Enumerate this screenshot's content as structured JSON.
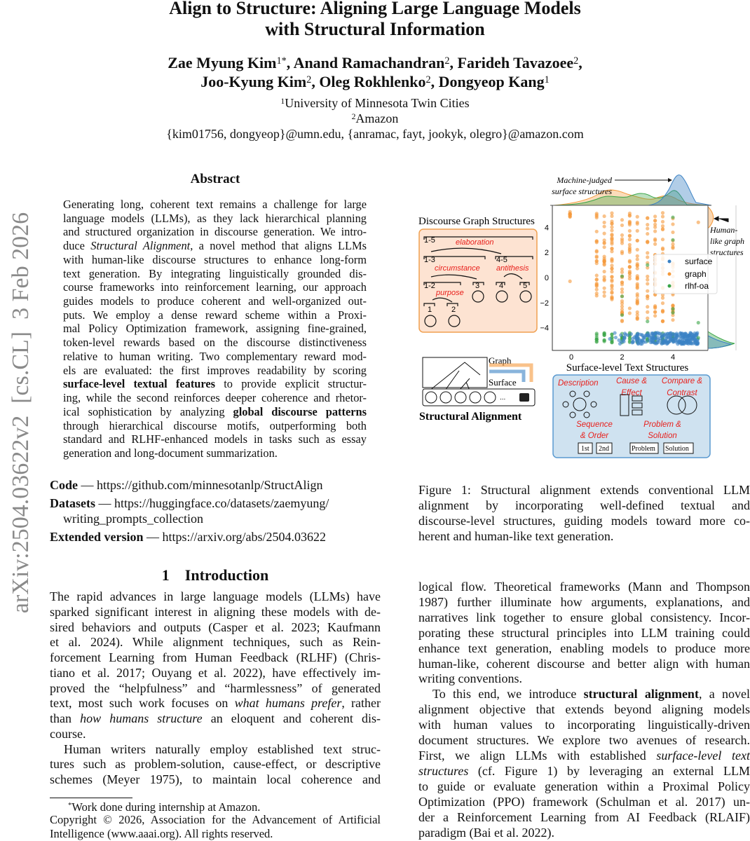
{
  "sidebar_stamp": "arXiv:2504.03622v2  [cs.CL]  3 Feb 2026",
  "title": {
    "line1": "Align to Structure: Aligning Large Language Models",
    "line2": "with Structural Information"
  },
  "authors": {
    "line1": [
      [
        "Zae Myung Kim",
        "1*"
      ],
      [
        "Anand Ramachandran",
        "2"
      ],
      [
        "Farideh Tavazoee",
        "2"
      ]
    ],
    "line2": [
      [
        "Joo-Kyung Kim",
        "2"
      ],
      [
        "Oleg Rokhlenko",
        "2"
      ],
      [
        "Dongyeop Kang",
        "1"
      ]
    ]
  },
  "affiliations": [
    {
      "sup": "1",
      "text": "University of Minnesota Twin Cities"
    },
    {
      "sup": "2",
      "text": "Amazon"
    }
  ],
  "emails": "{kim01756, dongyeop}@umn.edu, {anramac, fayt, jookyk, olegro}@amazon.com",
  "abstract": {
    "heading": "Abstract",
    "lines": [
      "Generating long, coherent text remains a challenge for large",
      "language models (LLMs), as they lack hierarchical planning",
      "and structured organization in discourse generation. We intro-",
      [
        [
          "n",
          "duce "
        ],
        [
          "i",
          "Structural Alignment"
        ],
        [
          "n",
          ", a novel method that aligns LLMs"
        ]
      ],
      "with human-like discourse structures to enhance long-form",
      "text generation. By integrating linguistically grounded dis-",
      "course frameworks into reinforcement learning, our approach",
      "guides models to produce coherent and well-organized out-",
      "puts. We employ a dense reward scheme within a Proxi-",
      "mal Policy Optimization framework, assigning fine-grained,",
      "token-level rewards based on the discourse distinctiveness",
      "relative to human writing. Two complementary reward mod-",
      "els are evaluated: the first improves readability by scoring",
      [
        [
          "b",
          "surface-level textual features"
        ],
        [
          "n",
          " to provide explicit structur-"
        ]
      ],
      "ing, while the second reinforces deeper coherence and rhetor-",
      [
        [
          "n",
          "ical sophistication by analyzing "
        ],
        [
          "b",
          "global discourse patterns"
        ]
      ],
      "through hierarchical discourse motifs, outperforming both",
      "standard and RLHF-enhanced models in tasks such as essay",
      "generation and long-document summarization."
    ]
  },
  "links": {
    "code_label": "Code",
    "code_url": "https://github.com/minnesotanlp/StructAlign",
    "datasets_label": "Datasets",
    "datasets_url_1": "https://huggingface.co/datasets/zaemyung/",
    "datasets_url_2": "writing_prompts_collection",
    "extended_label": "Extended version",
    "extended_url": "https://arxiv.org/abs/2504.03622",
    "dash": " — "
  },
  "intro": {
    "heading": "1    Introduction",
    "left_lines": [
      "The rapid advances in large language models (LLMs) have",
      "sparked significant interest in aligning these models with de-",
      "sired behaviors and outputs (Casper et al. 2023; Kaufmann",
      "et al. 2024). While alignment techniques, such as Rein-",
      "forcement Learning from Human Feedback (RLHF) (Chris-",
      "tiano et al. 2017; Ouyang et al. 2022), have effectively im-",
      "proved the “helpfulness” and “harmlessness” of generated",
      [
        [
          "n",
          "text, most such work focuses on "
        ],
        [
          "i",
          "what humans prefer"
        ],
        [
          "n",
          ", rather"
        ]
      ],
      [
        [
          "n",
          "than "
        ],
        [
          "i",
          "how humans structure"
        ],
        [
          "n",
          " an eloquent and coherent dis-"
        ]
      ],
      "course.",
      "Human writers naturally employ established text struc-",
      "tures such as problem-solution, cause-effect, or descriptive",
      "schemes (Meyer 1975), to maintain local coherence and"
    ],
    "right_lines": [
      "logical flow. Theoretical frameworks (Mann and Thompson",
      "1987) further illuminate how arguments, explanations, and",
      "narratives link together to ensure global consistency. Incor-",
      "porating these structural principles into LLM training could",
      "enhance text generation, enabling models to produce more",
      "human-like, coherent discourse and better align with human",
      "writing conventions.",
      [
        [
          "n",
          "To this end, we introduce "
        ],
        [
          "b",
          "structural alignment"
        ],
        [
          "n",
          ", a novel"
        ]
      ],
      "alignment objective that extends beyond aligning models",
      "with human values to incorporating linguistically-driven",
      "document structures. We explore two avenues of research.",
      [
        [
          "n",
          "First, we align LLMs with established "
        ],
        [
          "i",
          "surface-level text"
        ]
      ],
      [
        [
          "i",
          "structures"
        ],
        [
          "n",
          " (cf. Figure 1) by leveraging an external LLM"
        ]
      ],
      "to guide or evaluate generation within a Proximal Policy",
      "Optimization (PPO) framework (Schulman et al. 2017) un-",
      "der a Reinforcement Learning from AI Feedback (RLAIF)",
      "paradigm (Bai et al. 2022)."
    ]
  },
  "footnote": {
    "mark": "*",
    "text": "Work done during internship at Amazon.",
    "copyright_1": "Copyright © 2026, Association for the Advancement of Artificial",
    "copyright_2": "Intelligence (www.aaai.org). All rights reserved."
  },
  "figure": {
    "caption_lines": [
      "Figure 1: Structural alignment extends conventional LLM",
      "alignment by incorporating well-defined textual and",
      "discourse-level structures, guiding models toward more co-",
      "herent and human-like text generation."
    ],
    "graph_panel_title": "Discourse Graph Structures",
    "graph_nodes": [
      "1-5",
      "1-3",
      "4-5",
      "1-2",
      "3",
      "4",
      "5",
      "1",
      "2"
    ],
    "graph_relations": [
      "elaboration",
      "circumstance",
      "antithesis",
      "purpose"
    ],
    "annotation_top_1": "Machine-judged",
    "annotation_top_2": "surface structures",
    "annotation_right_1": "Human-",
    "annotation_right_2": "like graph",
    "annotation_right_3": "structures",
    "pipeline_graph": "Graph",
    "pipeline_surface": "Surface",
    "pipeline_ellipsis": "...",
    "pipeline_title": "Structural Alignment",
    "surface_types": [
      "Description",
      "Cause &",
      "Effect",
      "Compare &",
      "Contrast",
      "Sequence",
      "& Order",
      "Problem &",
      "Solution"
    ],
    "seq_boxes": [
      "1st",
      "2nd"
    ],
    "ps_boxes": [
      "Problem",
      "Solution"
    ],
    "colors": {
      "surface": "#3b82c4",
      "graph": "#f59a3c",
      "rlhf-oa": "#3aa548",
      "red": "#e8201c",
      "graph_panel": "#fde3d2",
      "surface_panel": "#cfe2f0"
    },
    "chart_data": {
      "type": "scatter",
      "xlabel": "Surface-level Text Structures",
      "ylabel": "",
      "xticks": [
        "0",
        "2",
        "4"
      ],
      "yticks": [
        "4",
        "2",
        "0",
        "−2",
        "−4"
      ],
      "xlim": [
        -0.5,
        5.3
      ],
      "ylim": [
        -5.5,
        5.6
      ],
      "legend": [
        "surface",
        "graph",
        "rlhf-oa"
      ],
      "legend_placement": "right",
      "marginals": "kde"
    }
  }
}
